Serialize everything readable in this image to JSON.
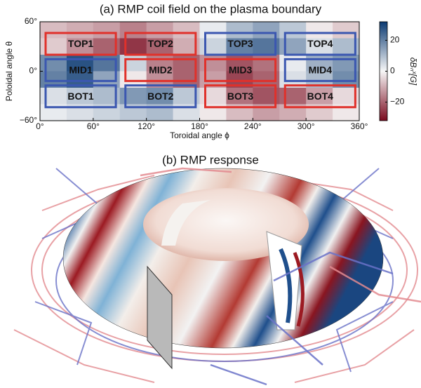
{
  "chart_data": {
    "type": "heatmap",
    "title": "(a) RMP coil field on the plasma boundary",
    "x_label": "Toroidal angle ϕ",
    "y_label": "Poloidal angle θ",
    "colorbar_label": "δBₙˣ[G]",
    "xlim": [
      0,
      360
    ],
    "ylim": [
      -60,
      60
    ],
    "xticks": [
      {
        "value": 0,
        "label": "0°"
      },
      {
        "value": 60,
        "label": "60°"
      },
      {
        "value": 120,
        "label": "120°"
      },
      {
        "value": 180,
        "label": "180°"
      },
      {
        "value": 240,
        "label": "240°"
      },
      {
        "value": 300,
        "label": "300°"
      },
      {
        "value": 360,
        "label": "360°"
      }
    ],
    "yticks": [
      {
        "value": 60,
        "label": "60°"
      },
      {
        "value": 0,
        "label": "0°"
      },
      {
        "value": -60,
        "label": "−60°"
      }
    ],
    "clim": [
      -32,
      32
    ],
    "cticks": [
      {
        "value": -20,
        "label": "−20"
      },
      0,
      20
    ],
    "colormap": [
      "#7a0a1e",
      "#f7f7f7",
      "#0b3a72"
    ],
    "z": [
      [
        -8,
        -10,
        -12,
        -16,
        -12,
        -8,
        2,
        10,
        14,
        8,
        -2,
        -6
      ],
      [
        -6,
        -14,
        -20,
        -26,
        -20,
        -10,
        6,
        20,
        22,
        14,
        4,
        10
      ],
      [
        18,
        28,
        22,
        6,
        -16,
        -20,
        -14,
        -22,
        -18,
        2,
        12,
        16
      ],
      [
        20,
        26,
        14,
        -2,
        -14,
        -20,
        -12,
        -24,
        -20,
        4,
        10,
        18
      ],
      [
        4,
        8,
        10,
        16,
        18,
        8,
        -4,
        -18,
        -22,
        -20,
        -12,
        -4
      ],
      [
        2,
        4,
        6,
        8,
        10,
        4,
        -2,
        -8,
        -12,
        -10,
        -6,
        -2
      ]
    ],
    "annotations": [
      {
        "text": "TOP1",
        "color": "#e0312b"
      },
      {
        "text": "TOP2",
        "color": "#e0312b"
      },
      {
        "text": "TOP3",
        "color": "#3b57b0"
      },
      {
        "text": "TOP4",
        "color": "#3b57b0"
      },
      {
        "text": "MID1",
        "color": "#3b57b0"
      },
      {
        "text": "MID2",
        "color": "#e0312b"
      },
      {
        "text": "MID3",
        "color": "#e0312b"
      },
      {
        "text": "MID4",
        "color": "#3b57b0"
      },
      {
        "text": "BOT1",
        "color": "#3b57b0"
      },
      {
        "text": "BOT2",
        "color": "#3b57b0"
      },
      {
        "text": "BOT3",
        "color": "#e0312b"
      },
      {
        "text": "BOT4",
        "color": "#e0312b"
      }
    ]
  },
  "panel_b": {
    "title": "(b) RMP response"
  }
}
